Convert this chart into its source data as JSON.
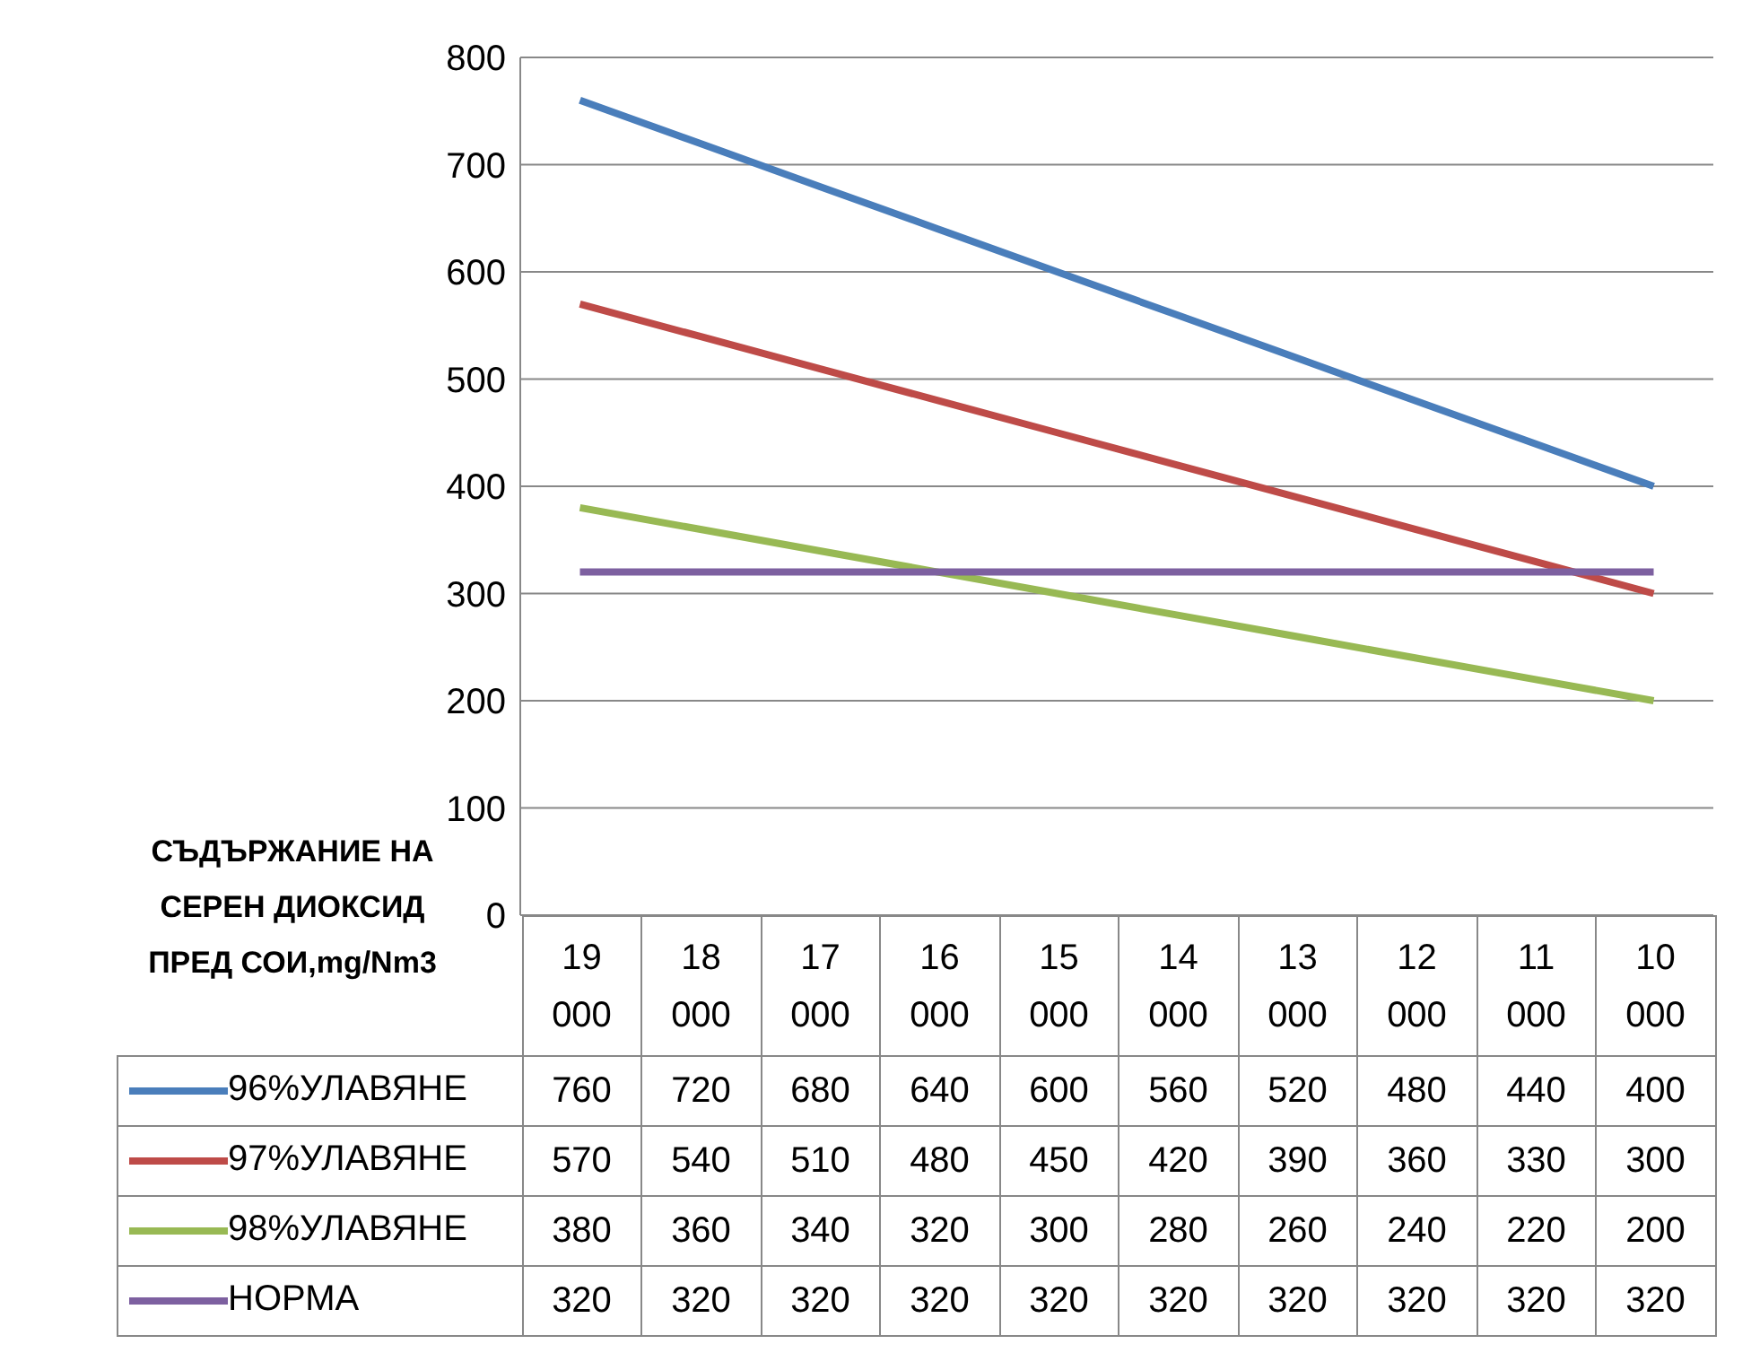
{
  "chart_data": {
    "type": "line",
    "ylabel": "СЪДЪРЖАНИЕ НА СЕРЕН ДИОКСИД ПРЕД СОИ,mg/Nm3",
    "categories": [
      "19 000",
      "18 000",
      "17 000",
      "16 000",
      "15 000",
      "14 000",
      "13 000",
      "12 000",
      "11 000",
      "10 000"
    ],
    "series": [
      {
        "name": "96%УЛАВЯНЕ",
        "color": "#4a7ebb",
        "values": [
          760,
          720,
          680,
          640,
          600,
          560,
          520,
          480,
          440,
          400
        ]
      },
      {
        "name": "97%УЛАВЯНЕ",
        "color": "#be4b48",
        "values": [
          570,
          540,
          510,
          480,
          450,
          420,
          390,
          360,
          330,
          300
        ]
      },
      {
        "name": "98%УЛАВЯНЕ",
        "color": "#98b954",
        "values": [
          380,
          360,
          340,
          320,
          300,
          280,
          260,
          240,
          220,
          200
        ]
      },
      {
        "name": "НОРМА",
        "color": "#7d60a0",
        "values": [
          320,
          320,
          320,
          320,
          320,
          320,
          320,
          320,
          320,
          320
        ]
      }
    ],
    "ylim": [
      0,
      800
    ],
    "yticks": [
      0,
      100,
      200,
      300,
      400,
      500,
      600,
      700,
      800
    ],
    "grid": "y",
    "marker": "none",
    "line_style": "solid",
    "data_labels": true,
    "legend": "bottom left"
  }
}
